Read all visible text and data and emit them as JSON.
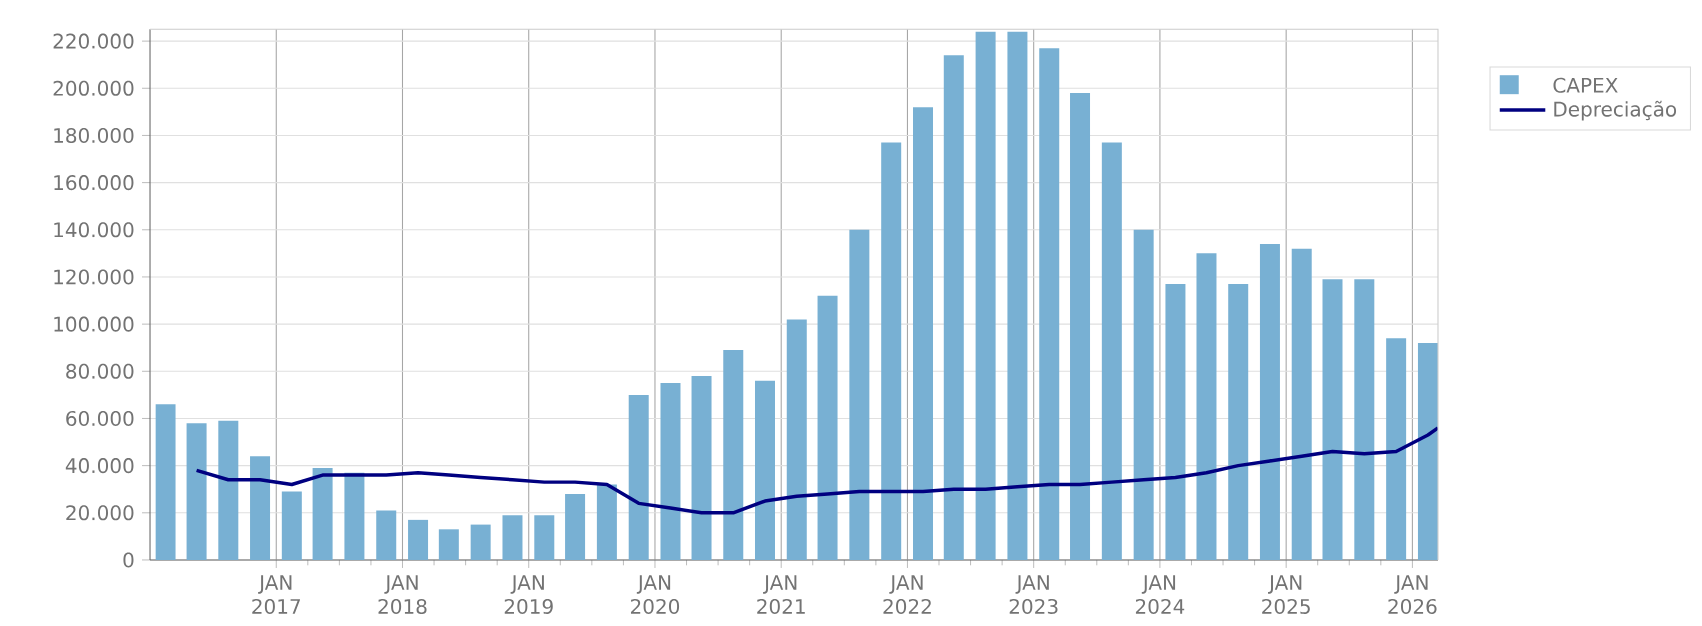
{
  "chart_data": {
    "type": "bar",
    "x": [
      "2016-02-15",
      "2016-05-15",
      "2016-08-15",
      "2016-11-15",
      "2017-02-15",
      "2017-05-15",
      "2017-08-15",
      "2017-11-15",
      "2018-02-15",
      "2018-05-15",
      "2018-08-15",
      "2018-11-15",
      "2019-02-15",
      "2019-05-15",
      "2019-08-15",
      "2019-11-15",
      "2020-02-15",
      "2020-05-15",
      "2020-08-15",
      "2020-11-15",
      "2021-02-15",
      "2021-05-15",
      "2021-08-15",
      "2021-11-15",
      "2022-02-15",
      "2022-05-15",
      "2022-08-15",
      "2022-11-15",
      "2023-02-15",
      "2023-05-15",
      "2023-08-15",
      "2023-11-15",
      "2024-02-15",
      "2024-05-15",
      "2024-08-15",
      "2024-11-15",
      "2025-02-15",
      "2025-05-15",
      "2025-08-15",
      "2025-11-15",
      "2026-02-15"
    ],
    "series": [
      {
        "name": "CAPEX",
        "color": "#78b0d3",
        "values": [
          66000,
          58000,
          59000,
          44000,
          29000,
          39000,
          37000,
          21000,
          17000,
          13000,
          15000,
          19000,
          19000,
          28000,
          32000,
          70000,
          75000,
          78000,
          89000,
          76000,
          102000,
          112000,
          140000,
          177000,
          192000,
          214000,
          224000,
          224000,
          217000,
          198000,
          177000,
          140000,
          117000,
          130000,
          117000,
          134000,
          132000,
          119000,
          119000,
          94000,
          92000
        ]
      },
      {
        "name": "Depreciação",
        "type": "line",
        "color": "#000080",
        "x": [
          "2016-05-15",
          "2016-08-15",
          "2016-11-15",
          "2017-02-15",
          "2017-05-15",
          "2017-08-15",
          "2017-11-15",
          "2018-02-15",
          "2018-05-15",
          "2018-08-15",
          "2018-11-15",
          "2019-02-15",
          "2019-05-15",
          "2019-08-15",
          "2019-11-15",
          "2020-02-15",
          "2020-05-15",
          "2020-08-15",
          "2020-11-15",
          "2021-02-15",
          "2021-05-15",
          "2021-08-15",
          "2021-11-15",
          "2022-02-15",
          "2022-05-15",
          "2022-08-15",
          "2022-11-15",
          "2023-02-15",
          "2023-05-15",
          "2023-08-15",
          "2023-11-15",
          "2024-02-15",
          "2024-05-15",
          "2024-08-15",
          "2024-11-15",
          "2025-02-15",
          "2025-05-15",
          "2025-08-15",
          "2025-11-15",
          "2026-02-15",
          "2026-03-16"
        ],
        "values": [
          38000,
          34000,
          34000,
          32000,
          36000,
          36000,
          36000,
          37000,
          36000,
          35000,
          34000,
          33000,
          33000,
          32000,
          24000,
          22000,
          20000,
          20000,
          25000,
          27000,
          28000,
          29000,
          29000,
          29000,
          30000,
          30000,
          31000,
          32000,
          32000,
          33000,
          34000,
          35000,
          37000,
          40000,
          42000,
          44000,
          46000,
          45000,
          46000,
          53000,
          56000
        ]
      }
    ],
    "xlim": [
      "2016-01-01",
      "2026-03-16"
    ],
    "xticks": [
      {
        "value": "2017-01",
        "label": "JAN 2017"
      },
      {
        "value": "2018-01",
        "label": "JAN 2018"
      },
      {
        "value": "2019-01",
        "label": "JAN 2019"
      },
      {
        "value": "2020-01",
        "label": "JAN 2020"
      },
      {
        "value": "2021-01",
        "label": "JAN 2021"
      },
      {
        "value": "2022-01",
        "label": "JAN 2022"
      },
      {
        "value": "2023-01",
        "label": "JAN 2023"
      },
      {
        "value": "2024-01",
        "label": "JAN 2024"
      },
      {
        "value": "2025-01",
        "label": "JAN 2025"
      },
      {
        "value": "2026-01",
        "label": "JAN 2026"
      }
    ],
    "ylim": [
      0,
      225000
    ],
    "yticks": [
      0,
      {
        "value": 20000,
        "label": "20.000"
      },
      {
        "value": 40000,
        "label": "40.000"
      },
      {
        "value": 60000,
        "label": "60.000"
      },
      {
        "value": 80000,
        "label": "80.000"
      },
      {
        "value": 100000,
        "label": "100.000"
      },
      {
        "value": 120000,
        "label": "120.000"
      },
      {
        "value": 140000,
        "label": "140.000"
      },
      {
        "value": 160000,
        "label": "160.000"
      },
      {
        "value": 180000,
        "label": "180.000"
      },
      {
        "value": 200000,
        "label": "200.000"
      },
      {
        "value": 220000,
        "label": "220.000"
      }
    ],
    "grid": true,
    "legend": "top right"
  }
}
